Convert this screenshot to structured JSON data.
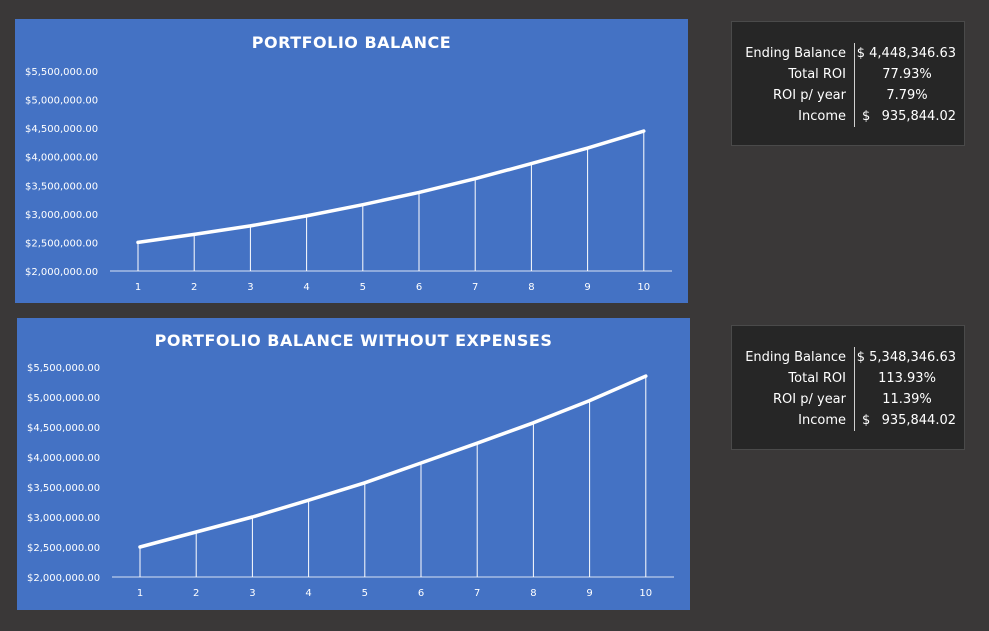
{
  "colors": {
    "background": "#3a3838",
    "chart_panel": "#4472c4",
    "series_line": "#ffffff",
    "stats_box": "#262626"
  },
  "chart_data": [
    {
      "type": "line",
      "title": "PORTFOLIO BALANCE",
      "xlabel": "",
      "ylabel": "",
      "x": [
        1,
        2,
        3,
        4,
        5,
        6,
        7,
        8,
        9,
        10
      ],
      "series": [
        {
          "values": [
            2500000,
            2640000,
            2790000,
            2965000,
            3160000,
            3375000,
            3615000,
            3880000,
            4150000,
            4448346.63
          ]
        }
      ],
      "ylim": [
        2000000,
        5500000
      ],
      "y_ticks": [
        "$2,000,000.00",
        "$2,500,000.00",
        "$3,000,000.00",
        "$3,500,000.00",
        "$4,000,000.00",
        "$4,500,000.00",
        "$5,000,000.00",
        "$5,500,000.00"
      ],
      "x_ticks": [
        "1",
        "2",
        "3",
        "4",
        "5",
        "6",
        "7",
        "8",
        "9",
        "10"
      ],
      "drop_lines": true,
      "grid": false,
      "legend": "none"
    },
    {
      "type": "line",
      "title": "PORTFOLIO BALANCE WITHOUT EXPENSES",
      "xlabel": "",
      "ylabel": "",
      "x": [
        1,
        2,
        3,
        4,
        5,
        6,
        7,
        8,
        9,
        10
      ],
      "series": [
        {
          "values": [
            2500000,
            2750000,
            3000000,
            3280000,
            3570000,
            3900000,
            4230000,
            4570000,
            4940000,
            5348346.63
          ]
        }
      ],
      "ylim": [
        2000000,
        5500000
      ],
      "y_ticks": [
        "$2,000,000.00",
        "$2,500,000.00",
        "$3,000,000.00",
        "$3,500,000.00",
        "$4,000,000.00",
        "$4,500,000.00",
        "$5,000,000.00",
        "$5,500,000.00"
      ],
      "x_ticks": [
        "1",
        "2",
        "3",
        "4",
        "5",
        "6",
        "7",
        "8",
        "9",
        "10"
      ],
      "drop_lines": true,
      "grid": false,
      "legend": "none"
    }
  ],
  "stats": [
    {
      "rows": [
        {
          "label": "Ending Balance",
          "currency": "",
          "value": "$ 4,448,346.63",
          "align": "right"
        },
        {
          "label": "Total ROI",
          "currency": "",
          "value": "77.93%",
          "align": "center"
        },
        {
          "label": "ROI p/ year",
          "currency": "",
          "value": "7.79%",
          "align": "center"
        },
        {
          "label": "Income",
          "currency": "$",
          "value": "935,844.02",
          "align": "right"
        }
      ]
    },
    {
      "rows": [
        {
          "label": "Ending Balance",
          "currency": "",
          "value": "$ 5,348,346.63",
          "align": "right"
        },
        {
          "label": "Total ROI",
          "currency": "",
          "value": "113.93%",
          "align": "center"
        },
        {
          "label": "ROI p/ year",
          "currency": "",
          "value": "11.39%",
          "align": "center"
        },
        {
          "label": "Income",
          "currency": "$",
          "value": "935,844.02",
          "align": "right"
        }
      ]
    }
  ]
}
